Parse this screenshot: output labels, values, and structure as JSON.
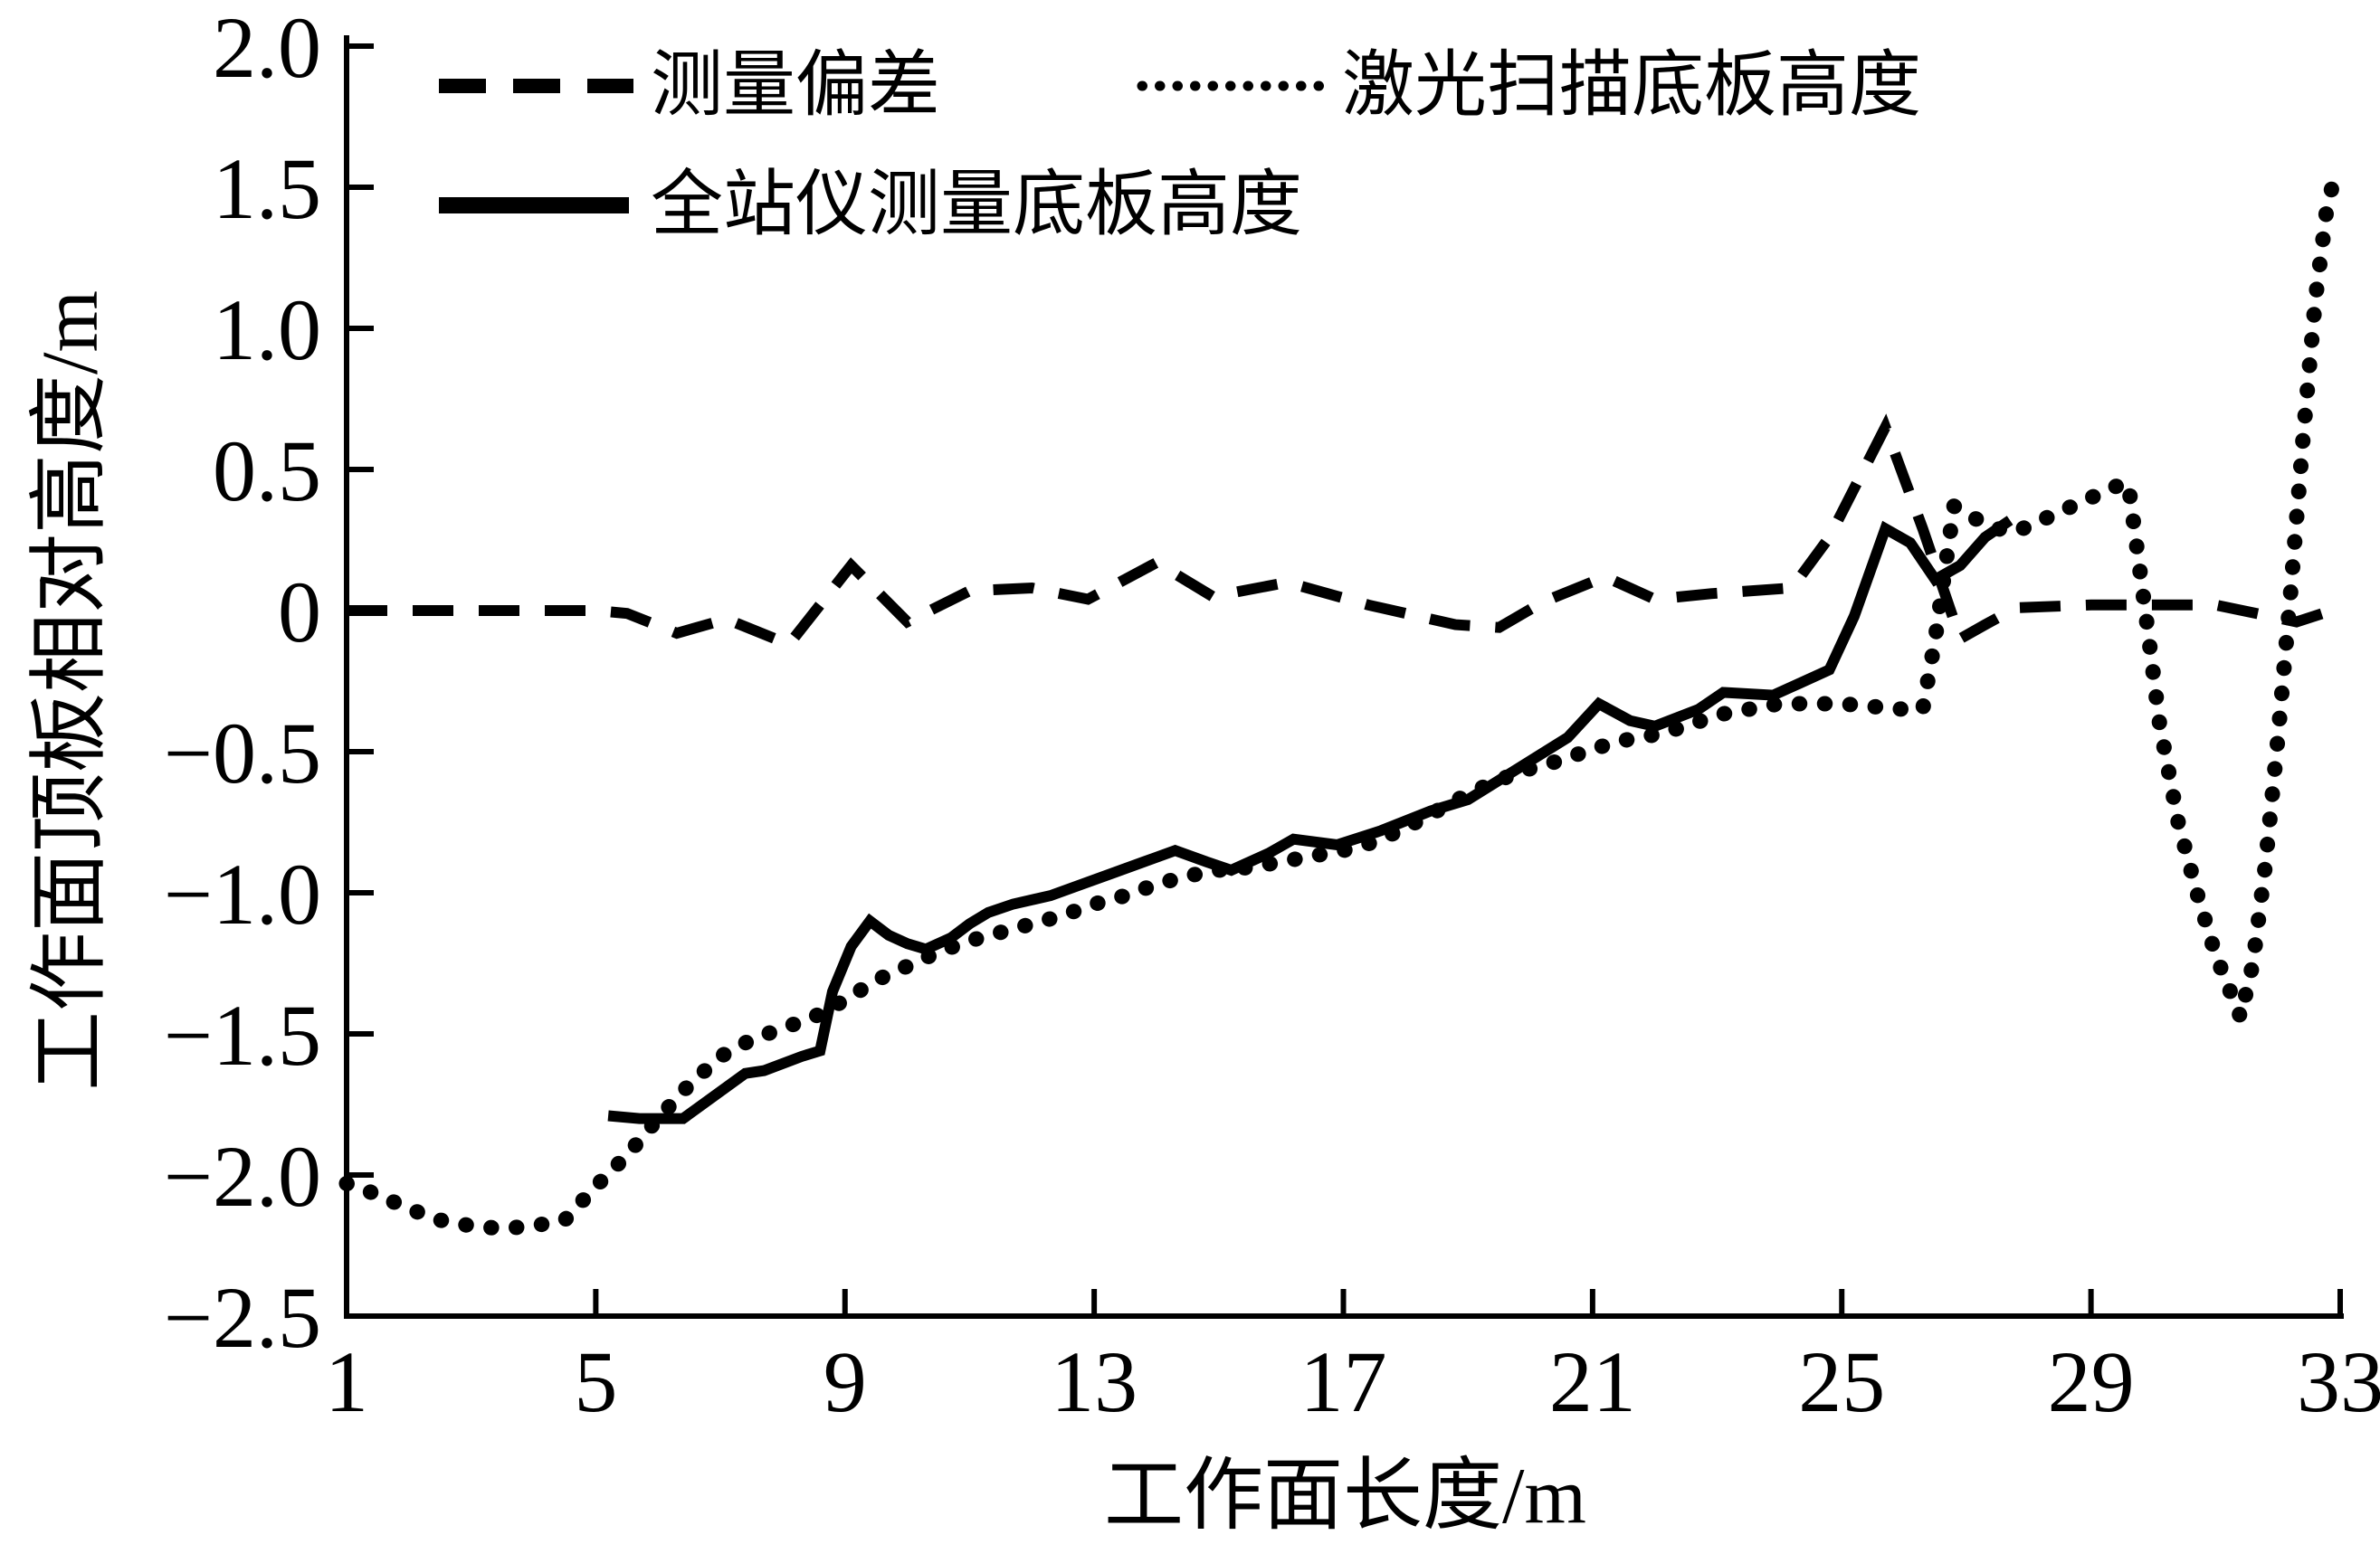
{
  "colors": {
    "line": "#000000",
    "background": "#ffffff"
  },
  "chart_data": {
    "type": "line",
    "title": "",
    "xlabel": "工作面长度/m",
    "ylabel": "工作面顶板相对高度/m",
    "xlim": [
      1,
      33
    ],
    "ylim": [
      -2.5,
      2.0
    ],
    "grid": false,
    "legend_position": "top-inside",
    "x_ticks": [
      1,
      5,
      9,
      13,
      17,
      21,
      25,
      29,
      33
    ],
    "x_tick_labels": [
      "1",
      "5",
      "9",
      "13",
      "17",
      "21",
      "25",
      "29",
      "33"
    ],
    "y_ticks": [
      2.0,
      1.5,
      1.0,
      0.5,
      0,
      -0.5,
      -1.0,
      -1.5,
      -2.0,
      -2.5
    ],
    "y_tick_labels": [
      "2.0",
      "1.5",
      "1.0",
      "0.5",
      "0",
      "−0.5",
      "−1.0",
      "−1.5",
      "−2.0",
      "−2.5"
    ],
    "series": [
      {
        "name": "测量偏差",
        "style": "dashed",
        "points": [
          [
            1,
            0
          ],
          [
            2,
            0
          ],
          [
            3,
            0
          ],
          [
            4,
            0
          ],
          [
            5,
            0
          ],
          [
            5.5,
            -0.01
          ],
          [
            6.3,
            -0.08
          ],
          [
            7.1,
            -0.03
          ],
          [
            8.1,
            -0.12
          ],
          [
            9.1,
            0.16
          ],
          [
            10,
            -0.04
          ],
          [
            11,
            0.07
          ],
          [
            12,
            0.08
          ],
          [
            12.9,
            0.04
          ],
          [
            14,
            0.17
          ],
          [
            14.9,
            0.05
          ],
          [
            16.1,
            0.1
          ],
          [
            17.4,
            0.02
          ],
          [
            18.8,
            -0.05
          ],
          [
            19.5,
            -0.06
          ],
          [
            20.2,
            0.03
          ],
          [
            21.2,
            0.12
          ],
          [
            22,
            0.04
          ],
          [
            22.9,
            0.06
          ],
          [
            24.2,
            0.08
          ],
          [
            24.8,
            0.26
          ],
          [
            25.7,
            0.65
          ],
          [
            26.3,
            0.29
          ],
          [
            26.9,
            -0.1
          ],
          [
            27.3,
            -0.05
          ],
          [
            27.8,
            0.01
          ],
          [
            29,
            0.02
          ],
          [
            30,
            0.02
          ],
          [
            31,
            0.02
          ],
          [
            32.3,
            -0.04
          ],
          [
            33,
            0.01
          ]
        ]
      },
      {
        "name": "激光扫描底板高度",
        "style": "dotted",
        "points": [
          [
            1,
            -2.03
          ],
          [
            1.5,
            -2.07
          ],
          [
            2,
            -2.12
          ],
          [
            2.5,
            -2.16
          ],
          [
            3,
            -2.18
          ],
          [
            3.5,
            -2.19
          ],
          [
            4,
            -2.18
          ],
          [
            4.5,
            -2.16
          ],
          [
            5,
            -2.04
          ],
          [
            5.5,
            -1.93
          ],
          [
            6,
            -1.8
          ],
          [
            6.5,
            -1.68
          ],
          [
            7,
            -1.58
          ],
          [
            7.5,
            -1.52
          ],
          [
            8,
            -1.48
          ],
          [
            8.5,
            -1.44
          ],
          [
            9,
            -1.38
          ],
          [
            9.5,
            -1.31
          ],
          [
            10,
            -1.26
          ],
          [
            10.5,
            -1.21
          ],
          [
            11,
            -1.17
          ],
          [
            11.5,
            -1.14
          ],
          [
            12,
            -1.11
          ],
          [
            12.5,
            -1.08
          ],
          [
            13,
            -1.04
          ],
          [
            13.5,
            -1.01
          ],
          [
            14,
            -0.97
          ],
          [
            14.5,
            -0.94
          ],
          [
            15,
            -0.92
          ],
          [
            15.5,
            -0.91
          ],
          [
            16,
            -0.89
          ],
          [
            16.5,
            -0.87
          ],
          [
            17,
            -0.85
          ],
          [
            17.5,
            -0.82
          ],
          [
            18,
            -0.77
          ],
          [
            18.5,
            -0.71
          ],
          [
            19,
            -0.65
          ],
          [
            19.5,
            -0.6
          ],
          [
            20,
            -0.56
          ],
          [
            20.5,
            -0.53
          ],
          [
            21,
            -0.49
          ],
          [
            21.5,
            -0.46
          ],
          [
            22,
            -0.44
          ],
          [
            22.5,
            -0.41
          ],
          [
            23,
            -0.37
          ],
          [
            23.5,
            -0.35
          ],
          [
            24,
            -0.33
          ],
          [
            24.5,
            -0.33
          ],
          [
            25,
            -0.33
          ],
          [
            25.5,
            -0.34
          ],
          [
            26,
            -0.35
          ],
          [
            26.3,
            -0.35
          ],
          [
            26.5,
            -0.1
          ],
          [
            26.8,
            0.37
          ],
          [
            27.1,
            0.33
          ],
          [
            27.5,
            0.29
          ],
          [
            27.8,
            0.28
          ],
          [
            28.2,
            0.32
          ],
          [
            28.6,
            0.36
          ],
          [
            29,
            0.4
          ],
          [
            29.4,
            0.44
          ],
          [
            29.6,
            0.45
          ],
          [
            29.75,
            0.2
          ],
          [
            29.9,
            -0.05
          ],
          [
            30.1,
            -0.4
          ],
          [
            30.4,
            -0.75
          ],
          [
            30.7,
            -1.0
          ],
          [
            31,
            -1.22
          ],
          [
            31.4,
            -1.44
          ],
          [
            31.6,
            -1.25
          ],
          [
            31.8,
            -0.9
          ],
          [
            32,
            -0.45
          ],
          [
            32.2,
            0.05
          ],
          [
            32.4,
            0.6
          ],
          [
            32.6,
            1.1
          ],
          [
            32.8,
            1.45
          ],
          [
            32.9,
            1.52
          ],
          [
            33,
            1.54
          ]
        ]
      },
      {
        "name": "全站仪测量底板高度",
        "style": "solid",
        "points": [
          [
            5.2,
            -1.79
          ],
          [
            5.7,
            -1.8
          ],
          [
            6.4,
            -1.8
          ],
          [
            7.4,
            -1.64
          ],
          [
            7.7,
            -1.63
          ],
          [
            8.3,
            -1.58
          ],
          [
            8.6,
            -1.56
          ],
          [
            8.8,
            -1.35
          ],
          [
            9.1,
            -1.19
          ],
          [
            9.4,
            -1.1
          ],
          [
            9.7,
            -1.15
          ],
          [
            10,
            -1.18
          ],
          [
            10.3,
            -1.2
          ],
          [
            10.7,
            -1.16
          ],
          [
            11,
            -1.11
          ],
          [
            11.3,
            -1.07
          ],
          [
            11.7,
            -1.04
          ],
          [
            12.3,
            -1.01
          ],
          [
            12.8,
            -0.97
          ],
          [
            13.3,
            -0.93
          ],
          [
            13.8,
            -0.89
          ],
          [
            14.3,
            -0.85
          ],
          [
            14.8,
            -0.89
          ],
          [
            15.2,
            -0.92
          ],
          [
            15.8,
            -0.86
          ],
          [
            16.2,
            -0.81
          ],
          [
            16.9,
            -0.83
          ],
          [
            17.6,
            -0.78
          ],
          [
            18.4,
            -0.71
          ],
          [
            19,
            -0.67
          ],
          [
            19.8,
            -0.56
          ],
          [
            20.6,
            -0.45
          ],
          [
            21.1,
            -0.33
          ],
          [
            21.6,
            -0.39
          ],
          [
            22,
            -0.41
          ],
          [
            22.7,
            -0.35
          ],
          [
            23.1,
            -0.29
          ],
          [
            23.9,
            -0.3
          ],
          [
            24.3,
            -0.26
          ],
          [
            24.8,
            -0.21
          ],
          [
            25.2,
            -0.02
          ],
          [
            25.7,
            0.29
          ],
          [
            26.1,
            0.24
          ],
          [
            26.5,
            0.11
          ],
          [
            26.9,
            0.16
          ],
          [
            27.3,
            0.26
          ],
          [
            27.7,
            0.32
          ]
        ]
      }
    ]
  }
}
